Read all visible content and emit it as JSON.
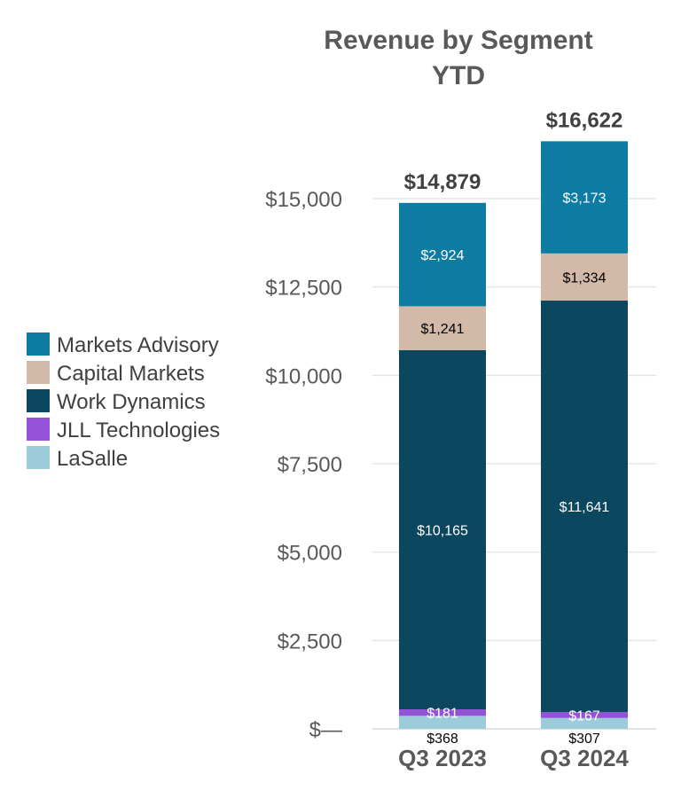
{
  "chart_data": {
    "type": "bar",
    "stacked": true,
    "title": "Revenue by Segment",
    "subtitle": "YTD",
    "categories": [
      "Q3 2023",
      "Q3 2024"
    ],
    "totals": [
      "$14,879",
      "$16,622"
    ],
    "ylim": [
      0,
      16622
    ],
    "yticks": [
      {
        "value": 0,
        "label": "$—"
      },
      {
        "value": 2500,
        "label": "$2,500"
      },
      {
        "value": 5000,
        "label": "$5,000"
      },
      {
        "value": 7500,
        "label": "$7,500"
      },
      {
        "value": 10000,
        "label": "$10,000"
      },
      {
        "value": 12500,
        "label": "$12,500"
      },
      {
        "value": 15000,
        "label": "$15,000"
      }
    ],
    "grid": true,
    "legend_position": "left",
    "series": [
      {
        "name": "LaSalle",
        "color": "#9ccbd9",
        "values": [
          368,
          307
        ],
        "labels": [
          "$368",
          "$307"
        ],
        "label_color": "#000000",
        "label_position": "below"
      },
      {
        "name": "JLL Technologies",
        "color": "#9352d8",
        "values": [
          181,
          167
        ],
        "labels": [
          "$181",
          "$167"
        ],
        "label_color": "#ffffff",
        "label_position": "inside"
      },
      {
        "name": "Work Dynamics",
        "color": "#0b475f",
        "values": [
          10165,
          11641
        ],
        "labels": [
          "$10,165",
          "$11,641"
        ],
        "label_color": "#ffffff",
        "label_position": "inside"
      },
      {
        "name": "Capital Markets",
        "color": "#d2b9a8",
        "values": [
          1241,
          1334
        ],
        "labels": [
          "$1,241",
          "$1,334"
        ],
        "label_color": "#000000",
        "label_position": "inside"
      },
      {
        "name": "Markets Advisory",
        "color": "#0e7ba2",
        "values": [
          2924,
          3173
        ],
        "labels": [
          "$2,924",
          "$3,173"
        ],
        "label_color": "#ffffff",
        "label_position": "inside"
      }
    ],
    "legend_order": [
      "Markets Advisory",
      "Capital Markets",
      "Work Dynamics",
      "JLL Technologies",
      "LaSalle"
    ]
  }
}
